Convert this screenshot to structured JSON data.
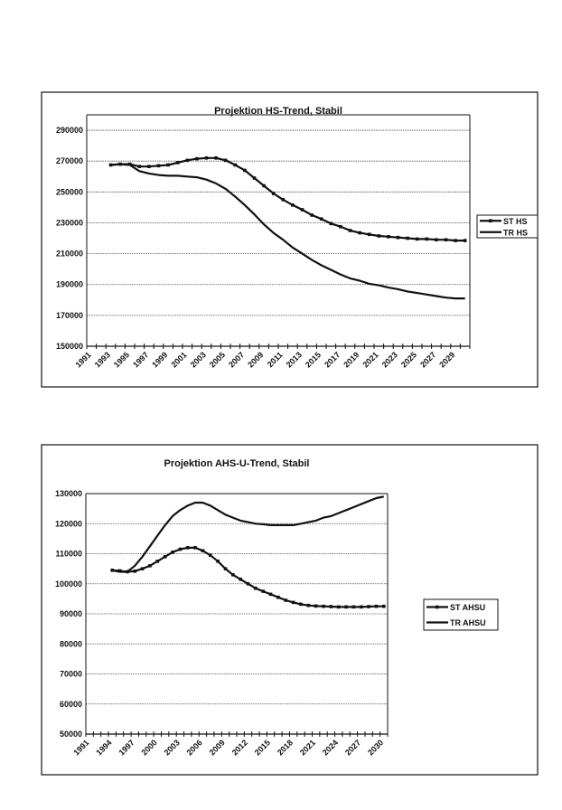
{
  "chart_data": [
    {
      "type": "line",
      "title": "Projektion HS-Trend, Stabil",
      "xlabel": "",
      "ylabel": "",
      "xlim": [
        1991,
        2030
      ],
      "ylim": [
        150000,
        300000
      ],
      "yticks": [
        150000,
        170000,
        190000,
        210000,
        230000,
        250000,
        270000,
        290000
      ],
      "ytick_labels": [
        "150000",
        "170000",
        "190000",
        "210000",
        "230000",
        "250000",
        "270000",
        "290000"
      ],
      "xtick_labels": [
        "1991",
        "1993",
        "1995",
        "1997",
        "1999",
        "2001",
        "2003",
        "2005",
        "2007",
        "2009",
        "2011",
        "2013",
        "2015",
        "2017",
        "2019",
        "2021",
        "2023",
        "2025",
        "2027",
        "2029"
      ],
      "grid": true,
      "legend_position": "right",
      "x": [
        1993,
        1994,
        1995,
        1996,
        1997,
        1998,
        1999,
        2000,
        2001,
        2002,
        2003,
        2004,
        2005,
        2006,
        2007,
        2008,
        2009,
        2010,
        2011,
        2012,
        2013,
        2014,
        2015,
        2016,
        2017,
        2018,
        2019,
        2020,
        2021,
        2022,
        2023,
        2024,
        2025,
        2026,
        2027,
        2028,
        2029,
        2030
      ],
      "series": [
        {
          "name": "ST HS",
          "markers": true,
          "values": [
            267500,
            268000,
            268000,
            266500,
            266500,
            267000,
            267500,
            269000,
            270500,
            271500,
            272000,
            272000,
            270500,
            267500,
            264000,
            259000,
            254000,
            249000,
            245000,
            241500,
            238500,
            235000,
            232500,
            229500,
            227500,
            225000,
            223500,
            222500,
            221500,
            221000,
            220500,
            220000,
            219500,
            219500,
            219000,
            219000,
            218500,
            218500
          ]
        },
        {
          "name": "TR HS",
          "markers": false,
          "values": [
            267500,
            268000,
            267500,
            263500,
            262000,
            261000,
            260500,
            260500,
            260000,
            259500,
            258000,
            255500,
            252000,
            247000,
            241500,
            235500,
            229000,
            223500,
            219000,
            214000,
            210000,
            206000,
            202500,
            199500,
            196500,
            194000,
            192500,
            190500,
            189500,
            188000,
            187000,
            185500,
            184500,
            183500,
            182500,
            181500,
            181000,
            181000
          ]
        }
      ]
    },
    {
      "type": "line",
      "title": "Projektion AHS-U-Trend, Stabil",
      "xlabel": "",
      "ylabel": "",
      "xlim": [
        1991,
        2030
      ],
      "ylim": [
        50000,
        130000
      ],
      "yticks": [
        50000,
        60000,
        70000,
        80000,
        90000,
        100000,
        110000,
        120000,
        130000
      ],
      "ytick_labels": [
        "50000",
        "60000",
        "70000",
        "80000",
        "90000",
        "100000",
        "110000",
        "120000",
        "130000"
      ],
      "xtick_labels": [
        "1991",
        "1994",
        "1997",
        "2000",
        "2003",
        "2006",
        "2009",
        "2012",
        "2015",
        "2018",
        "2021",
        "2024",
        "2027",
        "2030"
      ],
      "grid": true,
      "legend_position": "right",
      "x": [
        1994,
        1995,
        1996,
        1997,
        1998,
        1999,
        2000,
        2001,
        2002,
        2003,
        2004,
        2005,
        2006,
        2007,
        2008,
        2009,
        2010,
        2011,
        2012,
        2013,
        2014,
        2015,
        2016,
        2017,
        2018,
        2019,
        2020,
        2021,
        2022,
        2023,
        2024,
        2025,
        2026,
        2027,
        2028,
        2029,
        2030
      ],
      "series": [
        {
          "name": "ST AHSU",
          "markers": true,
          "values": [
            104500,
            104300,
            104000,
            104200,
            105000,
            106000,
            107500,
            109000,
            110500,
            111500,
            112000,
            112000,
            111000,
            109500,
            107500,
            105000,
            103000,
            101500,
            100000,
            98500,
            97500,
            96500,
            95500,
            94500,
            93800,
            93200,
            92800,
            92600,
            92500,
            92400,
            92300,
            92300,
            92300,
            92300,
            92400,
            92500,
            92500
          ]
        },
        {
          "name": "TR AHSU",
          "markers": false,
          "values": [
            104500,
            104000,
            104000,
            106000,
            109000,
            112500,
            116000,
            119500,
            122500,
            124500,
            126000,
            127000,
            127000,
            126000,
            124500,
            123000,
            122000,
            121000,
            120500,
            120000,
            119800,
            119500,
            119500,
            119500,
            119500,
            120000,
            120500,
            121000,
            122000,
            122500,
            123500,
            124500,
            125500,
            126500,
            127500,
            128500,
            129000
          ]
        }
      ]
    }
  ]
}
